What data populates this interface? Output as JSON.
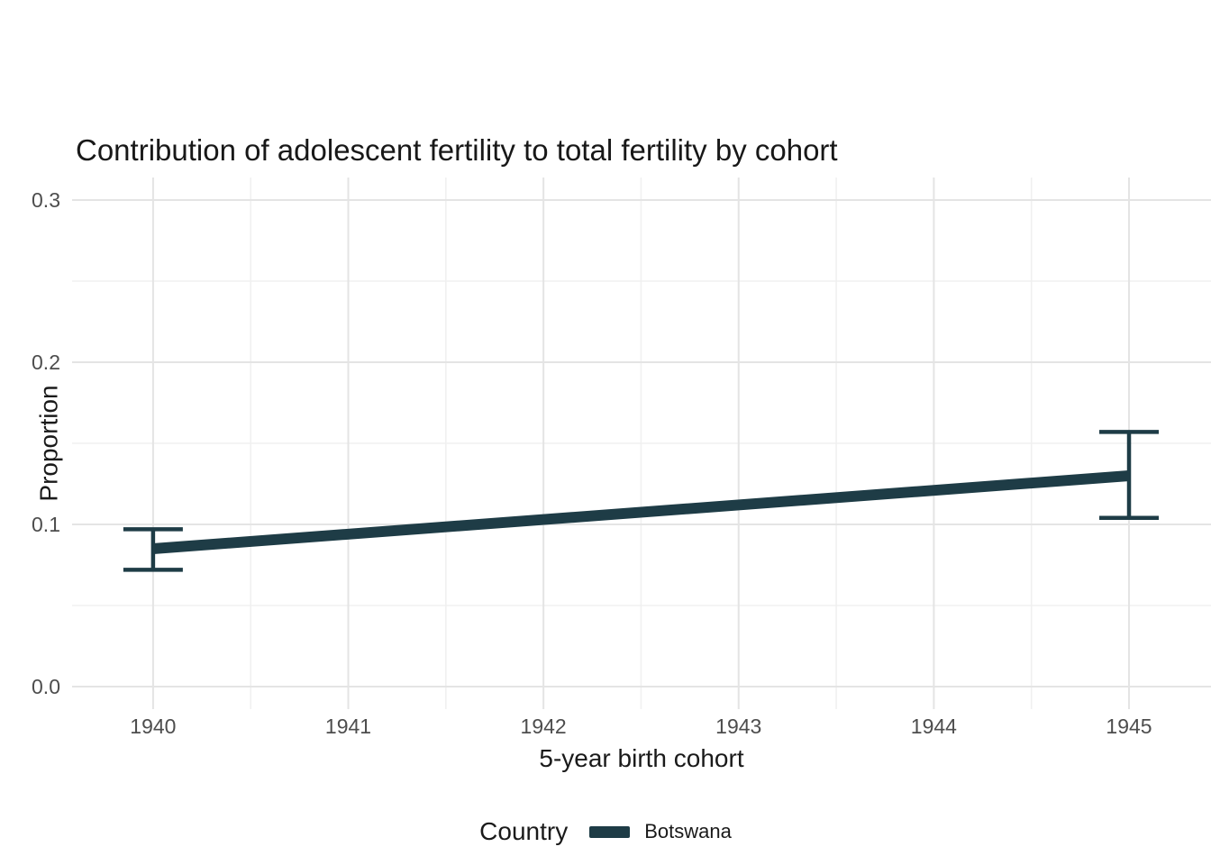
{
  "title": "Contribution of adolescent fertility to total fertility by cohort",
  "chart_data": {
    "type": "line",
    "title": "Contribution of adolescent fertility to total fertility by cohort",
    "xlabel": "5-year birth cohort",
    "ylabel": "Proportion",
    "x_ticks": [
      1940,
      1941,
      1942,
      1943,
      1944,
      1945
    ],
    "y_ticks": [
      "0.0",
      "0.1",
      "0.2",
      "0.3"
    ],
    "y_tick_values": [
      0.0,
      0.1,
      0.2,
      0.3
    ],
    "xlim": [
      1939.585,
      1945.42
    ],
    "ylim": [
      -0.01389,
      0.31389
    ],
    "grid": "major-and-minor",
    "background": "#ffffff",
    "series": [
      {
        "name": "Botswana",
        "color": "#1e3c46",
        "points": [
          {
            "x": 1940,
            "y": 0.085,
            "ci_low": 0.072,
            "ci_high": 0.097
          },
          {
            "x": 1945,
            "y": 0.13,
            "ci_low": 0.104,
            "ci_high": 0.157
          }
        ]
      }
    ],
    "legend": {
      "title": "Country",
      "position": "bottom",
      "entries": [
        {
          "label": "Botswana",
          "color": "#1e3c46"
        }
      ]
    }
  },
  "colors": {
    "series": "#1e3c46",
    "grid_major": "#e4e4e4",
    "grid_minor": "#f0f0f0",
    "tick_text": "#4d4d4d",
    "title_text": "#181818"
  }
}
